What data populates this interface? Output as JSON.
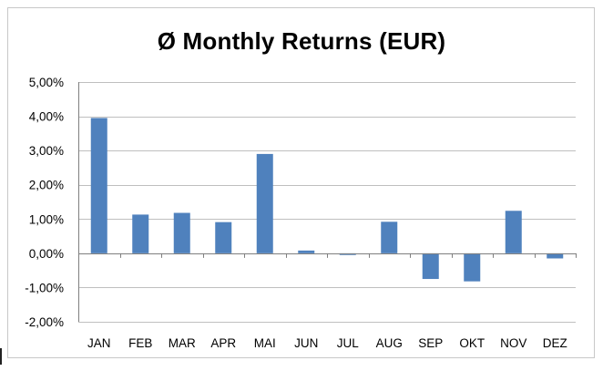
{
  "chart_data": {
    "type": "bar",
    "title": "Ø Monthly Returns (EUR)",
    "xlabel": "",
    "ylabel": "",
    "categories": [
      "JAN",
      "FEB",
      "MAR",
      "APR",
      "MAI",
      "JUN",
      "JUL",
      "AUG",
      "SEP",
      "OKT",
      "NOV",
      "DEZ"
    ],
    "values": [
      3.95,
      1.13,
      1.18,
      0.91,
      2.9,
      0.08,
      -0.05,
      0.92,
      -0.75,
      -0.82,
      1.24,
      -0.15
    ],
    "ylim": [
      -2,
      5
    ],
    "ytick_values": [
      5,
      4,
      3,
      2,
      1,
      0,
      -1,
      -2
    ],
    "ytick_labels": [
      "5,00%",
      "4,00%",
      "3,00%",
      "2,00%",
      "1,00%",
      "0,00%",
      "-1,00%",
      "-2,00%"
    ],
    "grid": true,
    "legend": "none",
    "colors": {
      "bar": "#4f81bd",
      "grid": "#bfbfbf",
      "axis": "#7f7f7f",
      "frame": "#c8c8c8"
    }
  }
}
